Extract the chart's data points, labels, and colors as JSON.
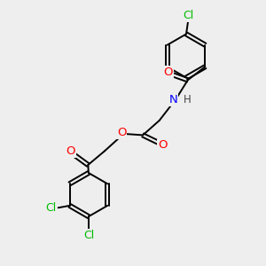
{
  "bg_color": "#eeeeee",
  "bond_color": "#000000",
  "bond_width": 1.4,
  "atom_colors": {
    "O": "#ff0000",
    "N": "#0000ff",
    "Cl": "#00bb00",
    "H": "#333333"
  },
  "font_size": 9.5,
  "fig_size": [
    3.0,
    3.0
  ],
  "dpi": 100
}
